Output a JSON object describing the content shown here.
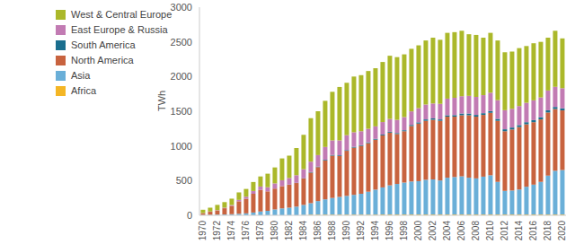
{
  "chart_data": {
    "type": "bar",
    "stacked": true,
    "y_label": "TWh",
    "legend": "top-left",
    "grid": false,
    "categories": [
      "1970",
      null,
      "1972",
      null,
      "1974",
      null,
      "1976",
      null,
      "1978",
      null,
      "1980",
      null,
      "1982",
      null,
      "1984",
      null,
      "1986",
      null,
      "1988",
      null,
      "1990",
      null,
      "1992",
      null,
      "1994",
      null,
      "1996",
      null,
      "1998",
      null,
      "2000",
      null,
      "2002",
      null,
      "2004",
      null,
      "2006",
      null,
      "2008",
      null,
      "2010",
      null,
      "2012",
      null,
      "2014",
      null,
      "2016",
      null,
      "2018",
      null,
      "2020"
    ],
    "ylim": [
      0,
      3000
    ],
    "yticks": [
      0,
      500,
      1000,
      1500,
      2000,
      2500,
      3000
    ],
    "series": [
      {
        "name": "West & Central Europe",
        "color": "#abb82a",
        "values": [
          48,
          55,
          76,
          80,
          92,
          108,
          112,
          130,
          145,
          195,
          230,
          315,
          322,
          392,
          495,
          627,
          632,
          665,
          700,
          770,
          755,
          803,
          808,
          833,
          838,
          866,
          911,
          904,
          904,
          902,
          905,
          923,
          948,
          923,
          948,
          946,
          943,
          888,
          893,
          828,
          863,
          860,
          835,
          825,
          835,
          818,
          823,
          801,
          761,
          808,
          718
        ]
      },
      {
        "name": "East Europe & Russia",
        "color": "#c27bb3",
        "values": [
          3,
          4,
          5,
          8,
          12,
          20,
          30,
          40,
          50,
          60,
          75,
          85,
          95,
          110,
          130,
          150,
          165,
          185,
          210,
          215,
          215,
          210,
          200,
          195,
          180,
          180,
          185,
          190,
          190,
          195,
          205,
          215,
          215,
          225,
          240,
          250,
          250,
          255,
          260,
          260,
          265,
          270,
          275,
          270,
          275,
          280,
          285,
          285,
          285,
          290,
          290
        ]
      },
      {
        "name": "South America",
        "color": "#1a6e8e",
        "values": [
          0,
          0,
          0,
          0,
          0,
          0,
          0,
          0,
          0,
          0,
          0,
          0,
          3,
          3,
          5,
          8,
          8,
          10,
          10,
          10,
          10,
          12,
          12,
          12,
          12,
          12,
          12,
          14,
          14,
          16,
          18,
          20,
          20,
          20,
          20,
          22,
          25,
          25,
          25,
          25,
          25,
          28,
          28,
          28,
          28,
          30,
          30,
          32,
          32,
          30,
          30
        ]
      },
      {
        "name": "North America",
        "color": "#c8633f",
        "values": [
          25,
          45,
          60,
          90,
          120,
          180,
          210,
          270,
          310,
          280,
          300,
          320,
          330,
          340,
          380,
          440,
          490,
          560,
          610,
          590,
          650,
          680,
          690,
          700,
          720,
          750,
          760,
          720,
          740,
          800,
          830,
          850,
          860,
          860,
          880,
          870,
          880,
          900,
          890,
          890,
          900,
          880,
          860,
          880,
          900,
          900,
          900,
          900,
          910,
          890,
          860
        ]
      },
      {
        "name": "Asia",
        "color": "#6aafd8",
        "values": [
          4,
          6,
          9,
          12,
          16,
          22,
          28,
          40,
          55,
          65,
          85,
          100,
          110,
          125,
          145,
          165,
          195,
          220,
          240,
          255,
          270,
          285,
          300,
          330,
          360,
          390,
          420,
          440,
          460,
          475,
          480,
          500,
          505,
          490,
          530,
          540,
          550,
          530,
          520,
          545,
          565,
          470,
          340,
          345,
          360,
          400,
          430,
          470,
          560,
          630,
          640
        ]
      },
      {
        "name": "Africa",
        "color": "#f4b625",
        "values": [
          0,
          0,
          0,
          0,
          0,
          0,
          0,
          0,
          0,
          0,
          0,
          0,
          0,
          0,
          5,
          10,
          10,
          10,
          10,
          10,
          10,
          10,
          10,
          10,
          10,
          12,
          12,
          12,
          12,
          12,
          12,
          12,
          12,
          12,
          12,
          12,
          12,
          12,
          12,
          12,
          12,
          12,
          12,
          12,
          12,
          12,
          12,
          12,
          12,
          12,
          12
        ]
      }
    ]
  }
}
